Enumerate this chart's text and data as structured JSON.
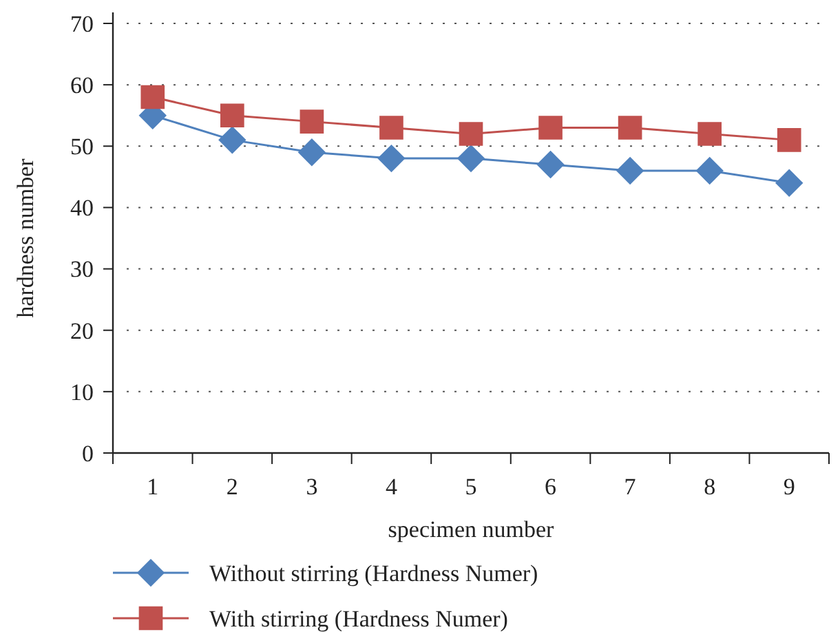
{
  "chart_data": {
    "type": "line",
    "xlabel": "specimen number",
    "ylabel": "hardness number",
    "categories": [
      "1",
      "2",
      "3",
      "4",
      "5",
      "6",
      "7",
      "8",
      "9"
    ],
    "series": [
      {
        "name": "Without stirring (Hardness Numer)",
        "color": "#4f81bd",
        "marker": "diamond",
        "values": [
          55,
          51,
          49,
          48,
          48,
          47,
          46,
          46,
          44
        ]
      },
      {
        "name": "With stirring (Hardness Numer)",
        "color": "#c0504d",
        "marker": "square",
        "values": [
          58,
          55,
          54,
          53,
          52,
          53,
          53,
          52,
          51
        ]
      }
    ],
    "ylim": [
      0,
      70
    ],
    "yticks": [
      0,
      10,
      20,
      30,
      40,
      50,
      60,
      70
    ],
    "grid": "y",
    "legend": "bottom",
    "line_style": "solid"
  }
}
